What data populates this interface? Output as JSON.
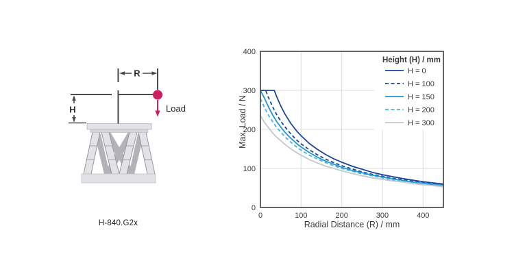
{
  "figure": {
    "background": "#ffffff",
    "caption": "H-840.G2x"
  },
  "diagram": {
    "caption": "H-840.G2x",
    "labels": {
      "radial": "R",
      "height": "H",
      "load": "Load"
    },
    "colors": {
      "dimension_line": "#4a4a4f",
      "load_accent": "#cb1f61",
      "platform_fill": "#e2e2e6",
      "platform_lip": "#d6d6da",
      "strut_fill": "#e3e3e7",
      "strut_outline": "#97979d",
      "strut_back": "#b2b2b9"
    }
  },
  "chart_data": {
    "type": "line",
    "title": "",
    "xlabel": "Radial Distance (R) / mm",
    "ylabel": "Max. Load / N",
    "xlim": [
      0,
      450
    ],
    "ylim": [
      0,
      400
    ],
    "xticks": [
      0,
      100,
      200,
      300,
      400
    ],
    "yticks": [
      0,
      100,
      200,
      300,
      400
    ],
    "grid": true,
    "legend_title": "Height (H) / mm",
    "legend_position": "top-right",
    "axis_color": "#3f3f3f",
    "grid_color": "#dcdcdc",
    "text_color": "#3a3a3a",
    "series": [
      {
        "name": "H = 0",
        "color": "#1a469b",
        "dash": null,
        "points": [
          [
            0,
            300
          ],
          [
            34,
            300
          ],
          [
            40,
            284
          ],
          [
            50,
            260
          ],
          [
            60,
            240
          ],
          [
            75,
            215
          ],
          [
            90,
            195
          ],
          [
            100,
            184
          ],
          [
            120,
            164
          ],
          [
            140,
            149
          ],
          [
            160,
            136
          ],
          [
            180,
            125
          ],
          [
            200,
            116
          ],
          [
            225,
            106
          ],
          [
            250,
            98
          ],
          [
            275,
            90
          ],
          [
            300,
            84
          ],
          [
            325,
            79
          ],
          [
            350,
            74
          ],
          [
            375,
            70
          ],
          [
            400,
            66
          ],
          [
            425,
            63
          ],
          [
            450,
            60
          ]
        ]
      },
      {
        "name": "H = 100",
        "color": "#1a469b",
        "dash": "5,3.5",
        "points": [
          [
            0,
            300
          ],
          [
            13,
            300
          ],
          [
            20,
            281
          ],
          [
            30,
            258
          ],
          [
            40,
            238
          ],
          [
            50,
            221
          ],
          [
            60,
            207
          ],
          [
            75,
            188
          ],
          [
            90,
            172
          ],
          [
            100,
            163
          ],
          [
            120,
            148
          ],
          [
            140,
            135
          ],
          [
            160,
            124
          ],
          [
            180,
            115
          ],
          [
            200,
            107
          ],
          [
            225,
            99
          ],
          [
            250,
            91
          ],
          [
            275,
            85
          ],
          [
            300,
            80
          ],
          [
            325,
            75
          ],
          [
            350,
            71
          ],
          [
            375,
            67
          ],
          [
            400,
            64
          ],
          [
            425,
            60
          ],
          [
            450,
            58
          ]
        ]
      },
      {
        "name": "H = 150",
        "color": "#2095d2",
        "dash": null,
        "points": [
          [
            0,
            300
          ],
          [
            10,
            280
          ],
          [
            20,
            257
          ],
          [
            30,
            237
          ],
          [
            40,
            220
          ],
          [
            50,
            206
          ],
          [
            60,
            193
          ],
          [
            75,
            177
          ],
          [
            90,
            163
          ],
          [
            100,
            155
          ],
          [
            120,
            141
          ],
          [
            140,
            129
          ],
          [
            160,
            119
          ],
          [
            180,
            111
          ],
          [
            200,
            103
          ],
          [
            225,
            95
          ],
          [
            250,
            89
          ],
          [
            275,
            83
          ],
          [
            300,
            78
          ],
          [
            325,
            73
          ],
          [
            350,
            69
          ],
          [
            375,
            65
          ],
          [
            400,
            62
          ],
          [
            425,
            59
          ],
          [
            450,
            57
          ]
        ]
      },
      {
        "name": "H = 200",
        "color": "#45b3e3",
        "dash": "5,3.5",
        "points": [
          [
            0,
            279
          ],
          [
            10,
            256
          ],
          [
            20,
            236
          ],
          [
            30,
            220
          ],
          [
            40,
            205
          ],
          [
            50,
            193
          ],
          [
            60,
            181
          ],
          [
            75,
            167
          ],
          [
            90,
            154
          ],
          [
            100,
            147
          ],
          [
            120,
            134
          ],
          [
            140,
            124
          ],
          [
            160,
            115
          ],
          [
            180,
            107
          ],
          [
            200,
            100
          ],
          [
            225,
            93
          ],
          [
            250,
            86
          ],
          [
            275,
            81
          ],
          [
            300,
            76
          ],
          [
            325,
            71
          ],
          [
            350,
            68
          ],
          [
            375,
            64
          ],
          [
            400,
            61
          ],
          [
            425,
            58
          ],
          [
            450,
            56
          ]
        ]
      },
      {
        "name": "H = 300",
        "color": "#c4c7cb",
        "dash": null,
        "points": [
          [
            0,
            235
          ],
          [
            10,
            218
          ],
          [
            20,
            204
          ],
          [
            30,
            191
          ],
          [
            40,
            180
          ],
          [
            50,
            171
          ],
          [
            60,
            162
          ],
          [
            75,
            150
          ],
          [
            90,
            140
          ],
          [
            100,
            134
          ],
          [
            120,
            123
          ],
          [
            140,
            114
          ],
          [
            160,
            106
          ],
          [
            180,
            100
          ],
          [
            200,
            94
          ],
          [
            225,
            87
          ],
          [
            250,
            81
          ],
          [
            275,
            76
          ],
          [
            300,
            72
          ],
          [
            325,
            68
          ],
          [
            350,
            65
          ],
          [
            375,
            61
          ],
          [
            400,
            58
          ],
          [
            425,
            56
          ],
          [
            450,
            53
          ]
        ]
      }
    ]
  }
}
